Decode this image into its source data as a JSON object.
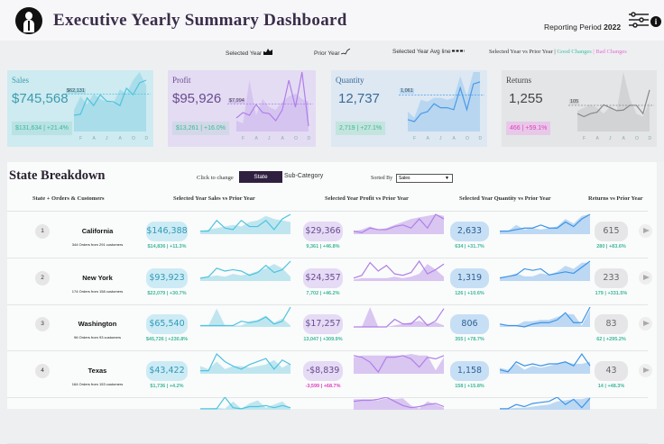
{
  "header": {
    "title": "Executive Yearly Summary Dashboard",
    "reporting_label": "Reporting Period",
    "reporting_year": "2022",
    "logo_icon": "person-icon",
    "filter_icon": "sliders-icon",
    "info_icon": "info-icon",
    "info_glyph": "i"
  },
  "legend": {
    "selected_year": "Selected Year",
    "prior_year": "Prior Year",
    "avg_line": "Selected Year Avg line",
    "compare": "Selected Year vs Prior Year |",
    "good": "Good Changes",
    "sep": "|",
    "bad": "Bad Changes",
    "good_color": "#3cc0a0",
    "bad_color": "#e070d0"
  },
  "months": [
    "F",
    "A",
    "J",
    "A",
    "O",
    "D"
  ],
  "kpis": [
    {
      "key": "sales",
      "label": "Sales",
      "value": "$745,568",
      "avg": "$62,131",
      "change": "$131,634 | +21.4%",
      "good": true,
      "bg": "#cdebf0",
      "fg": "#3d9bb0",
      "line": "#4ec3e0",
      "area": "#a9dde9",
      "chgbg": "#b9e2e4",
      "chgfg": "#3cb89a",
      "sel": [
        40,
        65,
        50,
        70,
        60,
        55,
        52,
        78,
        70,
        95,
        110,
        85
      ],
      "prior": [
        30,
        32,
        62,
        48,
        68,
        56,
        55,
        48,
        80,
        68,
        90,
        95
      ]
    },
    {
      "key": "profit",
      "label": "Profit",
      "value": "$95,926",
      "avg": "$7,994",
      "change": "$13,261 | +16.0%",
      "good": true,
      "bg": "#e3dcf3",
      "fg": "#6a4a90",
      "line": "#b07fe8",
      "area": "#d5c4f0",
      "chgbg": "#d2d8e8",
      "chgfg": "#3cb89a",
      "sel": [
        20,
        15,
        95,
        30,
        60,
        45,
        40,
        55,
        65,
        70,
        60,
        55
      ],
      "prior": [
        25,
        35,
        30,
        50,
        35,
        33,
        20,
        40,
        95,
        45,
        110,
        10
      ]
    },
    {
      "key": "quantity",
      "label": "Quantity",
      "value": "12,737",
      "avg": "1,061",
      "change": "2,719 | +27.1%",
      "good": true,
      "bg": "#dde8f3",
      "fg": "#3a6a95",
      "line": "#4a9ae8",
      "area": "#b8d6f0",
      "chgbg": "#c4e4de",
      "chgfg": "#3cb89a",
      "sel": [
        50,
        35,
        80,
        75,
        85,
        85,
        80,
        85,
        140,
        90,
        150,
        150
      ],
      "prior": [
        30,
        25,
        45,
        50,
        70,
        60,
        60,
        55,
        110,
        55,
        120,
        125
      ]
    },
    {
      "key": "returns",
      "label": "Returns",
      "value": "1,255",
      "avg": "105",
      "change": "466 | +59.1%",
      "good": false,
      "bg": "#e4e5e7",
      "fg": "#444",
      "line": "#888",
      "area": "#d2d3d5",
      "chgbg": "#e8c8e8",
      "chgfg": "#e040c0",
      "sel": [
        70,
        80,
        90,
        80,
        60,
        85,
        70,
        200,
        110,
        60,
        50,
        100
      ],
      "prior": [
        60,
        50,
        60,
        65,
        90,
        80,
        70,
        72,
        88,
        88,
        60,
        140
      ]
    }
  ],
  "breakdown": {
    "title": "State Breakdown",
    "click_label": "Click to change",
    "state_btn": "State",
    "subcat_btn": "Sub-Category",
    "sorted_by": "Sorted By",
    "sort_value": "Sales",
    "sort_arrow": "▼",
    "columns": [
      "State + Orders & Customers",
      "Selected Year Sales vs Prior Year",
      "Selected Year Profit vs Prior Year",
      "Selected Year Quantity vs Prior Year",
      "Returns vs Prior Year"
    ],
    "rows": [
      {
        "rank": "1",
        "state": "California",
        "orders": "344 Orders from 291 customers",
        "sales": "$146,388",
        "sales_chg": "$14,836 | +11.3%",
        "sales_good": true,
        "profit": "$29,366",
        "profit_chg": "9,361 | +46.8%",
        "profit_good": true,
        "qty": "2,633",
        "qty_chg": "634 | +31.7%",
        "qty_good": true,
        "ret": "615",
        "ret_chg": "280 | +83.6%",
        "ret_good": true,
        "s_sel": [
          2,
          3,
          4,
          5,
          6,
          5,
          8,
          9,
          12,
          10,
          9,
          8
        ],
        "s_pri": [
          2,
          2,
          9,
          4,
          3,
          9,
          5,
          5,
          9,
          3,
          10,
          13
        ],
        "p_sel": [
          2,
          3,
          5,
          3,
          4,
          6,
          8,
          10,
          11,
          12,
          13,
          12
        ],
        "p_pri": [
          2,
          1,
          4,
          3,
          3,
          5,
          6,
          4,
          10,
          4,
          13,
          10
        ],
        "q_sel": [
          2,
          2,
          6,
          3,
          4,
          3,
          4,
          5,
          10,
          7,
          12,
          13
        ],
        "q_pri": [
          2,
          2,
          3,
          4,
          4,
          6,
          4,
          4,
          8,
          5,
          10,
          13
        ]
      },
      {
        "rank": "2",
        "state": "New York",
        "orders": "174 Orders from 158 customers",
        "sales": "$93,923",
        "sales_chg": "$22,079 | +30.7%",
        "sales_good": true,
        "profit": "$24,357",
        "profit_chg": "7,702 | +46.2%",
        "profit_good": true,
        "qty": "1,319",
        "qty_chg": "126 | +10.6%",
        "qty_good": true,
        "ret": "233",
        "ret_chg": "179 | +331.5%",
        "ret_good": true,
        "s_sel": [
          2,
          3,
          4,
          3,
          5,
          4,
          5,
          7,
          9,
          12,
          9,
          3
        ],
        "s_pri": [
          2,
          3,
          9,
          7,
          8,
          7,
          4,
          6,
          11,
          6,
          8,
          14
        ],
        "p_sel": [
          1,
          2,
          2,
          2,
          2,
          3,
          2,
          3,
          5,
          12,
          8,
          3
        ],
        "p_pri": [
          2,
          4,
          13,
          7,
          11,
          5,
          4,
          6,
          14,
          5,
          8,
          12
        ],
        "q_sel": [
          2,
          3,
          5,
          3,
          3,
          5,
          4,
          6,
          10,
          8,
          12,
          12
        ],
        "q_pri": [
          2,
          3,
          4,
          8,
          7,
          8,
          4,
          5,
          6,
          5,
          9,
          13
        ]
      },
      {
        "rank": "3",
        "state": "Washington",
        "orders": "96 Orders from 93 customers",
        "sales": "$65,540",
        "sales_chg": "$45,726 | +230.8%",
        "sales_good": true,
        "profit": "$17,257",
        "profit_chg": "13,047 | +309.9%",
        "profit_good": true,
        "qty": "806",
        "qty_chg": "355 | +78.7%",
        "qty_good": true,
        "ret": "83",
        "ret_chg": "62 | +295.2%",
        "ret_good": true,
        "s_sel": [
          1,
          1,
          13,
          1,
          1,
          1,
          4,
          5,
          8,
          3,
          6,
          1
        ],
        "s_pri": [
          1,
          1,
          1,
          1,
          1,
          4,
          3,
          4,
          7,
          2,
          4,
          14
        ],
        "p_sel": [
          0,
          0,
          13,
          0,
          0,
          1,
          2,
          3,
          4,
          2,
          3,
          1
        ],
        "p_pri": [
          0,
          0,
          0,
          0,
          0,
          5,
          2,
          2,
          7,
          1,
          4,
          12
        ],
        "q_sel": [
          1,
          1,
          1,
          4,
          4,
          5,
          5,
          7,
          9,
          9,
          1,
          12
        ],
        "q_pri": [
          2,
          1,
          1,
          0,
          2,
          3,
          3,
          5,
          10,
          3,
          3,
          14
        ]
      },
      {
        "rank": "4",
        "state": "Texas",
        "orders": "164 Orders from 153 customers",
        "sales": "$43,422",
        "sales_chg": "$1,736 | +4.2%",
        "sales_good": true,
        "profit": "-$8,839",
        "profit_chg": "-3,599 | +68.7%",
        "profit_good": false,
        "qty": "1,158",
        "qty_chg": "158 | +15.8%",
        "qty_good": true,
        "ret": "43",
        "ret_chg": "14 | +48.3%",
        "ret_good": true,
        "s_sel": [
          5,
          3,
          8,
          3,
          5,
          5,
          4,
          5,
          6,
          9,
          4,
          7
        ],
        "s_pri": [
          2,
          2,
          13,
          8,
          5,
          3,
          6,
          8,
          10,
          3,
          9,
          6
        ],
        "p_sel": [
          10,
          11,
          11,
          11,
          11,
          11,
          11,
          12,
          11,
          11,
          2,
          10
        ],
        "p_pri": [
          11,
          10,
          7,
          1,
          10,
          10,
          11,
          9,
          4,
          10,
          9,
          11
        ],
        "q_sel": [
          3,
          2,
          5,
          2,
          4,
          3,
          4,
          5,
          6,
          5,
          5,
          6
        ],
        "q_pri": [
          2,
          1,
          6,
          4,
          5,
          4,
          5,
          5,
          6,
          4,
          10,
          4
        ]
      },
      {
        "rank": "",
        "state": "",
        "orders": "",
        "sales": "",
        "sales_chg": "",
        "sales_good": true,
        "profit": "",
        "profit_chg": "",
        "profit_good": true,
        "qty": "",
        "qty_chg": "",
        "qty_good": true,
        "ret": "",
        "ret_chg": "",
        "ret_good": true,
        "s_sel": [
          1,
          1,
          2,
          1,
          8,
          1,
          6,
          9,
          2,
          5,
          8,
          1
        ],
        "s_pri": [
          1,
          1,
          1,
          12,
          2,
          1,
          3,
          3,
          4,
          2,
          4,
          2
        ],
        "p_sel": [
          10,
          10,
          10,
          9,
          11,
          10,
          11,
          4,
          1,
          8,
          5,
          2
        ],
        "p_pri": [
          8,
          9,
          9,
          10,
          12,
          8,
          4,
          2,
          3,
          5,
          6,
          3
        ],
        "q_sel": [
          1,
          1,
          2,
          2,
          3,
          4,
          5,
          8,
          9,
          10,
          10,
          12
        ],
        "q_pri": [
          1,
          1,
          5,
          3,
          6,
          7,
          8,
          12,
          5,
          10,
          2,
          11
        ]
      }
    ]
  },
  "colors": {
    "good": "#3cb89a",
    "bad": "#e040c0"
  }
}
